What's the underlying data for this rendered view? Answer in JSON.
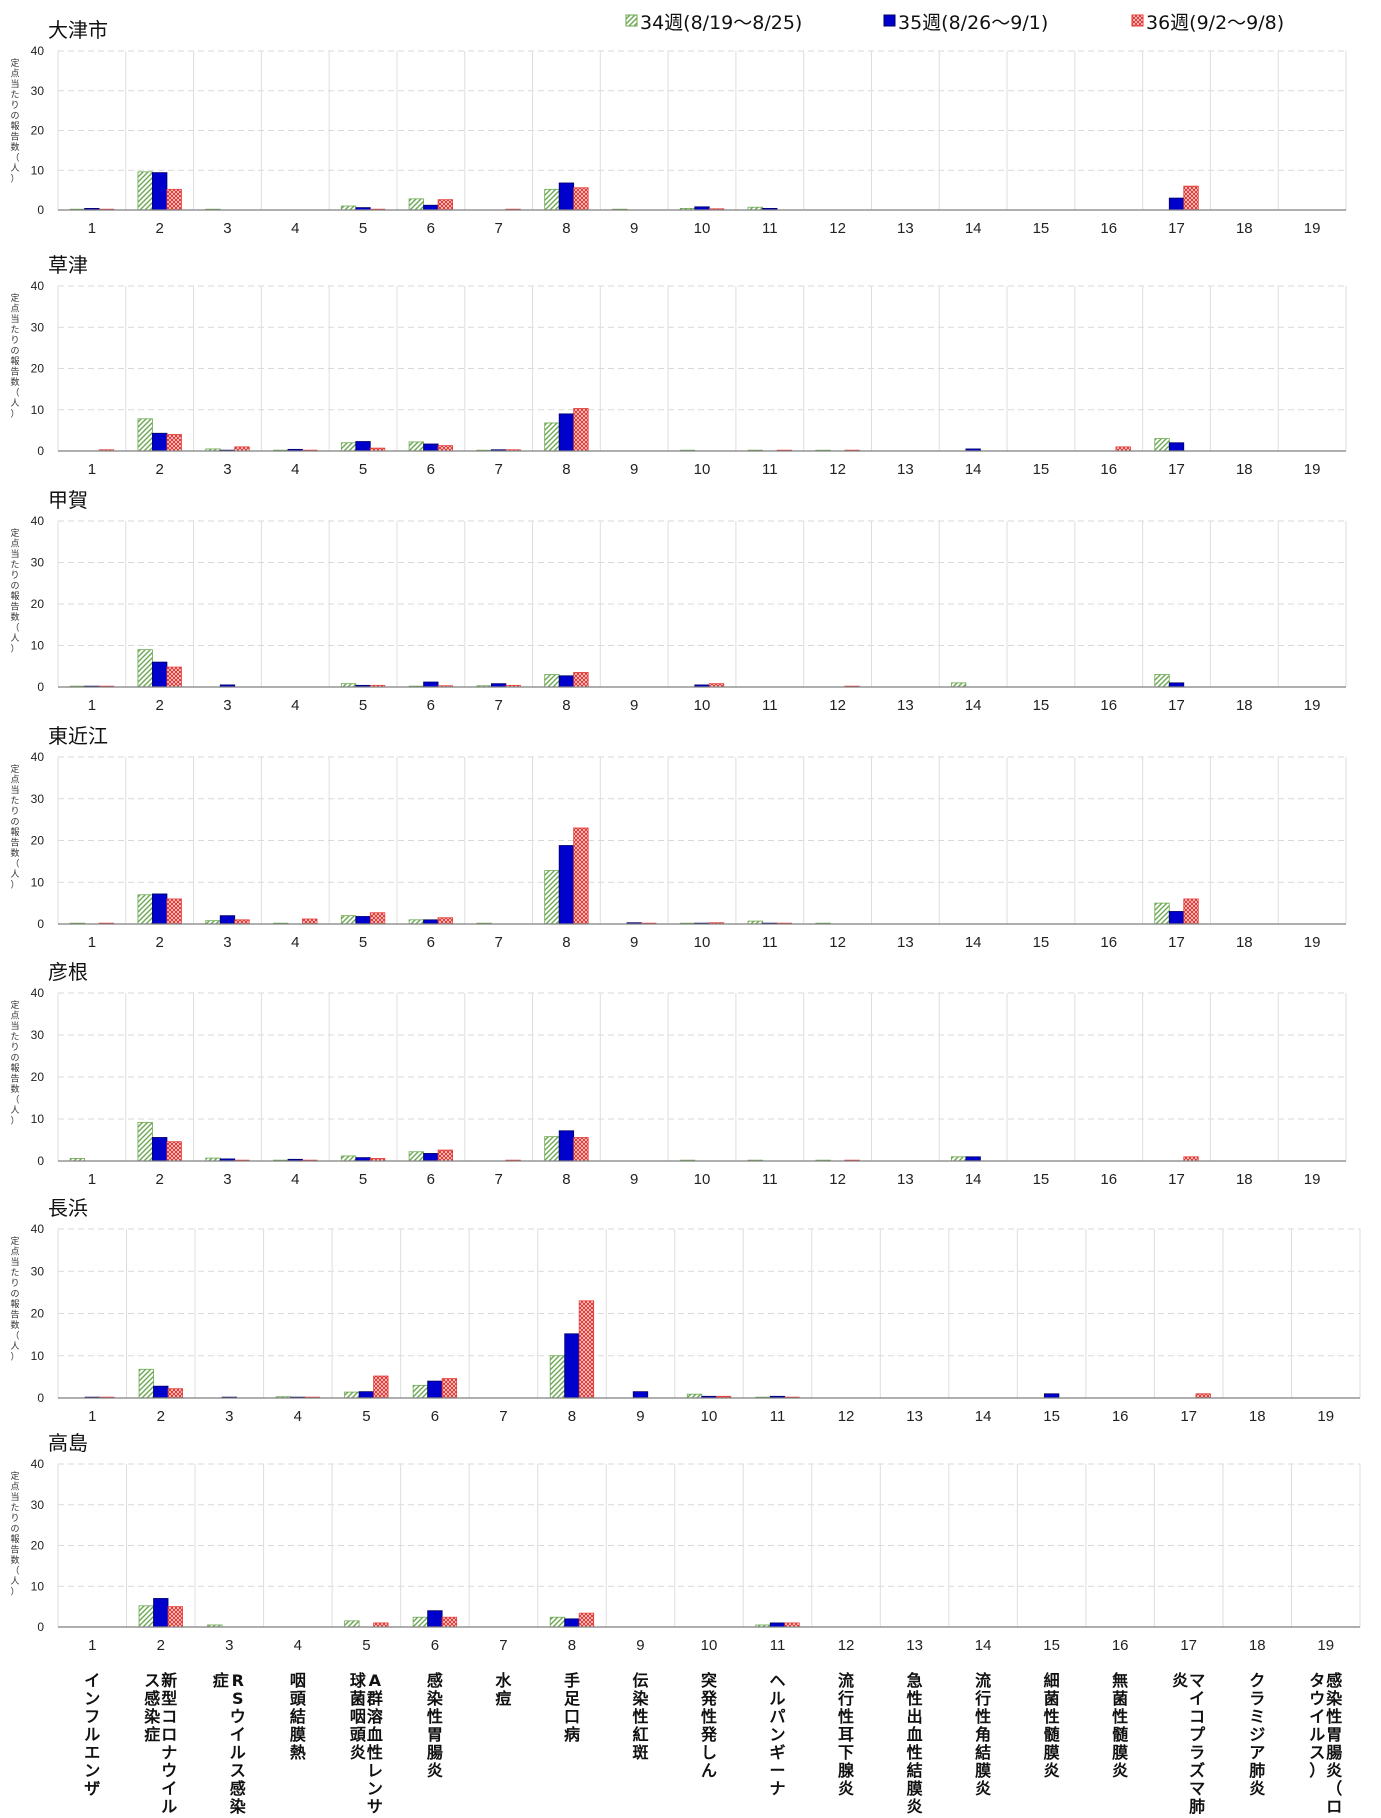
{
  "legend": [
    {
      "label": "34週(8/19〜8/25)",
      "pattern": "hatch-green",
      "color": "#6aa84f"
    },
    {
      "label": "35週(8/26〜9/1)",
      "pattern": "solid-blue",
      "color": "#0000cc"
    },
    {
      "label": "36週(9/2〜9/8)",
      "pattern": "cross-red",
      "color": "#e53935"
    }
  ],
  "y_axis_label": "定点当たりの報告数（人）",
  "diseases": [
    "インフルエンザ",
    "新型コロナウイルス感染症",
    "RSウイルス感染症",
    "咽頭結膜熱",
    "A群溶血性レンサ球菌咽頭炎",
    "感染性胃腸炎",
    "水痘",
    "手足口病",
    "伝染性紅斑",
    "突発性発しん",
    "ヘルパンギーナ",
    "流行性耳下腺炎",
    "急性出血性結膜炎",
    "流行性角結膜炎",
    "細菌性髄膜炎",
    "無菌性髄膜炎",
    "マイコプラズマ肺炎",
    "クラミジア肺炎",
    "感染性胃腸炎（ロタウイルス）"
  ],
  "chart_data": [
    {
      "type": "bar",
      "title": "大津市",
      "categories": [
        "1",
        "2",
        "3",
        "4",
        "5",
        "6",
        "7",
        "8",
        "9",
        "10",
        "11",
        "12",
        "13",
        "14",
        "15",
        "16",
        "17",
        "18",
        "19"
      ],
      "ylim": [
        0,
        40
      ],
      "yticks": [
        0,
        10,
        20,
        30,
        40
      ],
      "series": [
        {
          "name": "34週(8/19〜8/25)",
          "values": [
            0.1,
            9.6,
            0.1,
            0,
            1.0,
            2.8,
            0,
            5.2,
            0.1,
            0.4,
            0.7,
            0,
            0,
            0,
            0,
            0,
            0,
            0,
            0
          ]
        },
        {
          "name": "35週(8/26〜9/1)",
          "values": [
            0.4,
            9.4,
            0,
            0,
            0.6,
            1.2,
            0,
            6.8,
            0,
            0.8,
            0.4,
            0,
            0,
            0,
            0,
            0,
            3.0,
            0,
            0
          ]
        },
        {
          "name": "36週(9/2〜9/8)",
          "values": [
            0.2,
            5.2,
            0,
            0,
            0.2,
            2.6,
            0.1,
            5.6,
            0,
            0.3,
            0,
            0,
            0,
            0,
            0,
            0,
            6.0,
            0,
            0
          ]
        }
      ]
    },
    {
      "type": "bar",
      "title": "草津",
      "categories": [
        "1",
        "2",
        "3",
        "4",
        "5",
        "6",
        "7",
        "8",
        "9",
        "10",
        "11",
        "12",
        "13",
        "14",
        "15",
        "16",
        "17",
        "18",
        "19"
      ],
      "ylim": [
        0,
        40
      ],
      "yticks": [
        0,
        10,
        20,
        30,
        40
      ],
      "series": [
        {
          "name": "34週(8/19〜8/25)",
          "values": [
            0,
            7.8,
            0.5,
            0.2,
            2.0,
            2.2,
            0.1,
            6.8,
            0,
            0.1,
            0.2,
            0.1,
            0,
            0,
            0,
            0,
            3.0,
            0,
            0
          ]
        },
        {
          "name": "35週(8/26〜9/1)",
          "values": [
            0,
            4.3,
            0.2,
            0.4,
            2.3,
            1.7,
            0.3,
            9.0,
            0,
            0,
            0,
            0,
            0,
            0.5,
            0,
            0,
            2.0,
            0,
            0
          ]
        },
        {
          "name": "36週(9/2〜9/8)",
          "values": [
            0.3,
            4.0,
            1.0,
            0.2,
            0.7,
            1.3,
            0.3,
            10.3,
            0,
            0,
            0.2,
            0.2,
            0,
            0,
            0,
            1.0,
            0,
            0,
            0
          ]
        }
      ]
    },
    {
      "type": "bar",
      "title": "甲賀",
      "categories": [
        "1",
        "2",
        "3",
        "4",
        "5",
        "6",
        "7",
        "8",
        "9",
        "10",
        "11",
        "12",
        "13",
        "14",
        "15",
        "16",
        "17",
        "18",
        "19"
      ],
      "ylim": [
        0,
        40
      ],
      "yticks": [
        0,
        10,
        20,
        30,
        40
      ],
      "series": [
        {
          "name": "34週(8/19〜8/25)",
          "values": [
            0.2,
            9.0,
            0,
            0,
            0.8,
            0.2,
            0.3,
            3.0,
            0,
            0,
            0,
            0,
            0,
            1.0,
            0,
            0,
            3.0,
            0,
            0
          ]
        },
        {
          "name": "35週(8/26〜9/1)",
          "values": [
            0.2,
            6.0,
            0.5,
            0,
            0.4,
            1.2,
            0.8,
            2.7,
            0,
            0.5,
            0,
            0,
            0,
            0,
            0,
            0,
            1.0,
            0,
            0
          ]
        },
        {
          "name": "36週(9/2〜9/8)",
          "values": [
            0.2,
            4.8,
            0,
            0,
            0.4,
            0.3,
            0.4,
            3.5,
            0,
            0.8,
            0,
            0.2,
            0,
            0,
            0,
            0,
            0,
            0,
            0
          ]
        }
      ]
    },
    {
      "type": "bar",
      "title": "東近江",
      "categories": [
        "1",
        "2",
        "3",
        "4",
        "5",
        "6",
        "7",
        "8",
        "9",
        "10",
        "11",
        "12",
        "13",
        "14",
        "15",
        "16",
        "17",
        "18",
        "19"
      ],
      "ylim": [
        0,
        40
      ],
      "yticks": [
        0,
        10,
        20,
        30,
        40
      ],
      "series": [
        {
          "name": "34週(8/19〜8/25)",
          "values": [
            0.2,
            7.0,
            0.8,
            0.2,
            2.0,
            1.0,
            0.2,
            12.8,
            0,
            0.2,
            0.7,
            0.2,
            0,
            0,
            0,
            0,
            5.0,
            0,
            0
          ]
        },
        {
          "name": "35週(8/26〜9/1)",
          "values": [
            0,
            7.2,
            2.0,
            0,
            1.8,
            1.0,
            0,
            18.8,
            0.3,
            0.2,
            0.2,
            0,
            0,
            0,
            0,
            0,
            3.0,
            0,
            0
          ]
        },
        {
          "name": "36週(9/2〜9/8)",
          "values": [
            0.2,
            6.0,
            1.0,
            1.2,
            2.7,
            1.5,
            0,
            23.0,
            0.2,
            0.3,
            0.2,
            0,
            0,
            0,
            0,
            0,
            6.0,
            0,
            0
          ]
        }
      ]
    },
    {
      "type": "bar",
      "title": "彦根",
      "categories": [
        "1",
        "2",
        "3",
        "4",
        "5",
        "6",
        "7",
        "8",
        "9",
        "10",
        "11",
        "12",
        "13",
        "14",
        "15",
        "16",
        "17",
        "18",
        "19"
      ],
      "ylim": [
        0,
        40
      ],
      "yticks": [
        0,
        10,
        20,
        30,
        40
      ],
      "series": [
        {
          "name": "34週(8/19〜8/25)",
          "values": [
            0.6,
            9.2,
            0.7,
            0.2,
            1.2,
            2.2,
            0,
            5.8,
            0,
            0.2,
            0.2,
            0.2,
            0,
            1.0,
            0,
            0,
            0,
            0,
            0
          ]
        },
        {
          "name": "35週(8/26〜9/1)",
          "values": [
            0,
            5.6,
            0.5,
            0.4,
            0.8,
            1.8,
            0,
            7.2,
            0,
            0,
            0,
            0,
            0,
            1.0,
            0,
            0,
            0,
            0,
            0
          ]
        },
        {
          "name": "36週(9/2〜9/8)",
          "values": [
            0,
            4.6,
            0.2,
            0.2,
            0.6,
            2.6,
            0.2,
            5.6,
            0,
            0,
            0,
            0.2,
            0,
            0,
            0,
            0,
            1.0,
            0,
            0
          ]
        }
      ]
    },
    {
      "type": "bar",
      "title": "長浜",
      "categories": [
        "1",
        "2",
        "3",
        "4",
        "5",
        "6",
        "7",
        "8",
        "9",
        "10",
        "11",
        "12",
        "13",
        "14",
        "15",
        "16",
        "17",
        "18",
        "19"
      ],
      "ylim": [
        0,
        40
      ],
      "yticks": [
        0,
        10,
        20,
        30,
        40
      ],
      "series": [
        {
          "name": "34週(8/19〜8/25)",
          "values": [
            0,
            6.8,
            0,
            0.3,
            1.4,
            3.0,
            0,
            10.0,
            0,
            0.9,
            0.2,
            0,
            0,
            0,
            0,
            0,
            0,
            0,
            0
          ]
        },
        {
          "name": "35週(8/26〜9/1)",
          "values": [
            0.2,
            2.8,
            0.2,
            0.2,
            1.5,
            4.0,
            0,
            15.2,
            1.5,
            0.4,
            0.4,
            0,
            0,
            0,
            1.0,
            0,
            0,
            0,
            0
          ]
        },
        {
          "name": "36週(9/2〜9/8)",
          "values": [
            0.2,
            2.2,
            0,
            0.2,
            5.2,
            4.6,
            0,
            23.0,
            0,
            0.4,
            0.2,
            0,
            0,
            0,
            0,
            0,
            1.0,
            0,
            0
          ]
        }
      ]
    },
    {
      "type": "bar",
      "title": "高島",
      "categories": [
        "1",
        "2",
        "3",
        "4",
        "5",
        "6",
        "7",
        "8",
        "9",
        "10",
        "11",
        "12",
        "13",
        "14",
        "15",
        "16",
        "17",
        "18",
        "19"
      ],
      "ylim": [
        0,
        40
      ],
      "yticks": [
        0,
        10,
        20,
        30,
        40
      ],
      "series": [
        {
          "name": "34週(8/19〜8/25)",
          "values": [
            0,
            5.2,
            0.5,
            0,
            1.5,
            2.4,
            0,
            2.4,
            0,
            0,
            0.5,
            0,
            0,
            0,
            0,
            0,
            0,
            0,
            0
          ]
        },
        {
          "name": "35週(8/26〜9/1)",
          "values": [
            0,
            7.0,
            0,
            0,
            0,
            4.0,
            0,
            2.0,
            0,
            0,
            1.0,
            0,
            0,
            0,
            0,
            0,
            0,
            0,
            0
          ]
        },
        {
          "name": "36週(9/2〜9/8)",
          "values": [
            0,
            5.0,
            0,
            0,
            1.0,
            2.4,
            0,
            3.4,
            0,
            0,
            1.0,
            0,
            0,
            0,
            0,
            0,
            0,
            0,
            0
          ]
        }
      ]
    }
  ]
}
